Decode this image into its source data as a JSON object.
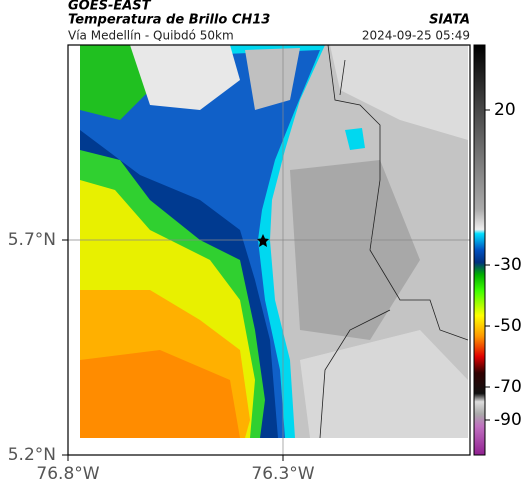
{
  "header": {
    "satellite": "GOES-EAST",
    "title": "Temperatura de Brillo CH13",
    "subtitle": "Vía Medellín - Quibdó 50km",
    "source": "SIATA",
    "timestamp": "2024-09-25 05:49"
  },
  "map": {
    "lat_ticks": [
      "5.7°N",
      "5.2°N"
    ],
    "lon_ticks": [
      "76.8°W",
      "76.3°W"
    ],
    "colorbar_ticks": [
      20,
      -30,
      -50,
      -70,
      -90
    ]
  }
}
